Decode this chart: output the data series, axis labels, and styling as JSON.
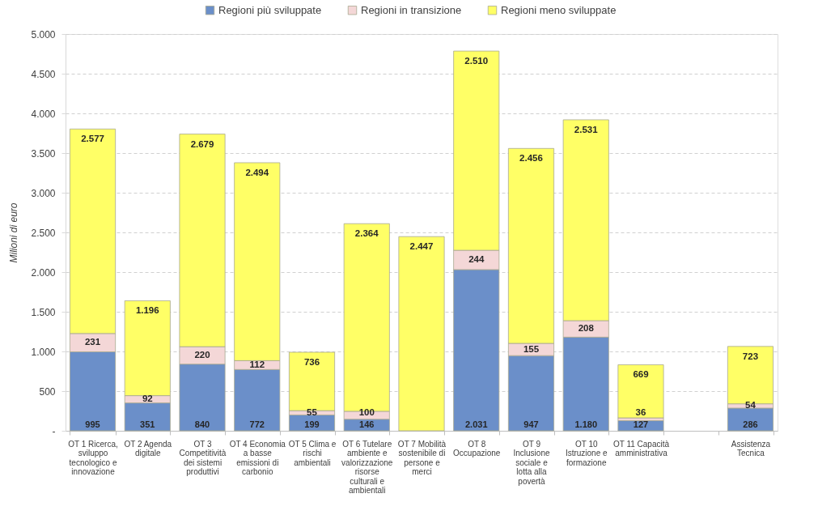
{
  "chart_data": {
    "type": "bar",
    "stacked": true,
    "ylabel": "Milioni di euro",
    "categories": [
      "OT 1 Ricerca, sviluppo tecnologico e innovazione",
      "OT 2 Agenda digitale",
      "OT 3 Competitività dei sistemi produttivi",
      "OT 4 Economia a basse emissioni di carbonio",
      "OT 5 Clima e rischi ambientali",
      "OT 6 Tutelare ambiente e valorizzazione risorse culturali e ambientali",
      "OT 7 Mobilità sostenibile di persone e merci",
      "OT 8 Occupazione",
      "OT 9 Inclusione sociale e lotta alla povertà",
      "OT 10 Istruzione e formazione",
      "OT 11 Capacità amministrativa",
      null,
      "Assistenza Tecnica"
    ],
    "series": [
      {
        "name": "Regioni più sviluppate",
        "color": "#6b8fc9",
        "values": [
          995,
          351,
          840,
          772,
          199,
          146,
          null,
          2031,
          947,
          1180,
          127,
          null,
          286
        ],
        "value_labels": [
          "995",
          "351",
          "840",
          "772",
          "199",
          "146",
          null,
          "2.031",
          "947",
          "1.180",
          "127",
          null,
          "286"
        ]
      },
      {
        "name": "Regioni in transizione",
        "color": "#f4d7d7",
        "values": [
          231,
          92,
          220,
          112,
          55,
          100,
          null,
          244,
          155,
          208,
          36,
          null,
          54
        ],
        "value_labels": [
          "231",
          "92",
          "220",
          "112",
          "55",
          "100",
          null,
          "244",
          "155",
          "208",
          "36",
          null,
          "54"
        ]
      },
      {
        "name": "Regioni meno sviluppate",
        "color": "#ffff66",
        "values": [
          2577,
          1196,
          2679,
          2494,
          736,
          2364,
          2447,
          2510,
          2456,
          2531,
          669,
          null,
          723
        ],
        "value_labels": [
          "2.577",
          "1.196",
          "2.679",
          "2.494",
          "736",
          "2.364",
          "2.447",
          "2.510",
          "2.456",
          "2.531",
          "669",
          null,
          "723"
        ]
      }
    ],
    "ylim": [
      0,
      5000
    ],
    "yticks": [
      {
        "value": 0,
        "label": "-"
      },
      500,
      {
        "value": 1000,
        "label": "1.000"
      },
      {
        "value": 1500,
        "label": "1.500"
      },
      {
        "value": 2000,
        "label": "2.000"
      },
      {
        "value": 2500,
        "label": "2.500"
      },
      {
        "value": 3000,
        "label": "3.000"
      },
      {
        "value": 3500,
        "label": "3.500"
      },
      {
        "value": 4000,
        "label": "4.000"
      },
      {
        "value": 4500,
        "label": "4.500"
      },
      {
        "value": 5000,
        "label": "5.000"
      }
    ],
    "grid": "y",
    "legend": "top"
  }
}
